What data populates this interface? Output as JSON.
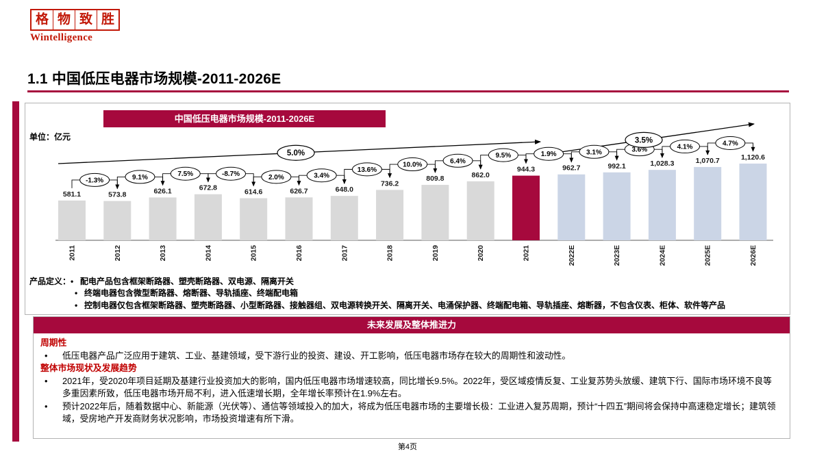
{
  "ui": {
    "bullet": "•"
  },
  "logo": {
    "brand_chars": [
      "格",
      "物",
      "致",
      "胜"
    ],
    "brand_en": "Wintelligence"
  },
  "page": {
    "title": "1.1 中国低压电器市场规模-2011-2026E",
    "footer": "第4页"
  },
  "chart": {
    "banner_title": "中国低压电器市场规模-2011-2026E",
    "unit_label": "单位：亿元"
  },
  "chart_data": {
    "type": "bar",
    "title": "中国低压电器市场规模-2011-2026E",
    "unit": "亿元",
    "categories": [
      "2011",
      "2012",
      "2013",
      "2014",
      "2015",
      "2016",
      "2017",
      "2018",
      "2019",
      "2020",
      "2021",
      "2022E",
      "2023E",
      "2024E",
      "2025E",
      "2026E"
    ],
    "values": [
      581.1,
      573.8,
      626.1,
      672.8,
      614.6,
      626.7,
      648.0,
      736.2,
      809.8,
      862.0,
      944.3,
      962.7,
      992.1,
      1028.3,
      1070.7,
      1120.6
    ],
    "value_labels": [
      "581.1",
      "573.8",
      "626.1",
      "672.8",
      "614.6",
      "626.7",
      "648.0",
      "736.2",
      "809.8",
      "862.0",
      "944.3",
      "962.7",
      "992.1",
      "1,028.3",
      "1,070.7",
      "1,120.6"
    ],
    "yoy_growth_labels": [
      "-1.3%",
      "9.1%",
      "7.5%",
      "-8.7%",
      "2.0%",
      "3.4%",
      "13.6%",
      "10.0%",
      "6.4%",
      "9.5%",
      "1.9%",
      "3.1%",
      "3.6%",
      "4.1%",
      "4.7%"
    ],
    "cagr_annotations": [
      {
        "label": "5.0%",
        "from": "2011",
        "to": "2021"
      },
      {
        "label": "3.5%",
        "from": "2021",
        "to": "2026E"
      }
    ],
    "highlight_category": "2021",
    "highlight_index": 10,
    "bar_colors": {
      "historical": "#D9D9D9",
      "highlight": "#A6093D",
      "forecast": "#CBD5E6"
    },
    "ylim": [
      0,
      1200
    ],
    "grid": false,
    "legend": false
  },
  "definitions": {
    "label": "产品定义：",
    "items": [
      "配电产品包含框架断路器、塑壳断路器、双电源、隔离开关",
      "终端电器包含微型断路器、熔断器、导轨插座、终端配电箱",
      "控制电器仅包含框架断路器、塑壳断路器、小型断路器、接触器组、双电源转换开关、隔离开关、电涌保护器、终端配电箱、导轨插座、熔断器，不包含仪表、柜体、软件等产品"
    ]
  },
  "future": {
    "banner": "未来发展及整体推进力",
    "sections": [
      {
        "heading": "周期性",
        "bullets": [
          "低压电器产品广泛应用于建筑、工业、基建领域，受下游行业的投资、建设、开工影响，低压电器市场存在较大的周期性和波动性。"
        ]
      },
      {
        "heading": "整体市场现状及发展趋势",
        "bullets": [
          "2021年，受2020年项目延期及基建行业投资加大的影响，国内低压电器市场增速较高，同比增长9.5%。2022年，受区域疫情反复、工业复苏势头放缓、建筑下行、国际市场环境不良等多重因素所致，低压电器市场开局不利，进入低速增长期，全年增长率预计在1.9%左右。",
          "预计2022年后，随着数据中心、新能源（光伏等）、通信等领域投入的加大，将成为低压电器市场的主要增长极：工业进入复苏周期，预计“十四五”期间将会保持中高速稳定增长；建筑领域，受房地产开发商财务状况影响，市场投资增速有所下滑。"
        ]
      }
    ]
  },
  "colors": {
    "accent_crimson": "#A6093D",
    "logo_red": "#C21807",
    "bar_gray": "#D9D9D9",
    "bar_forecast": "#CBD5E6"
  }
}
